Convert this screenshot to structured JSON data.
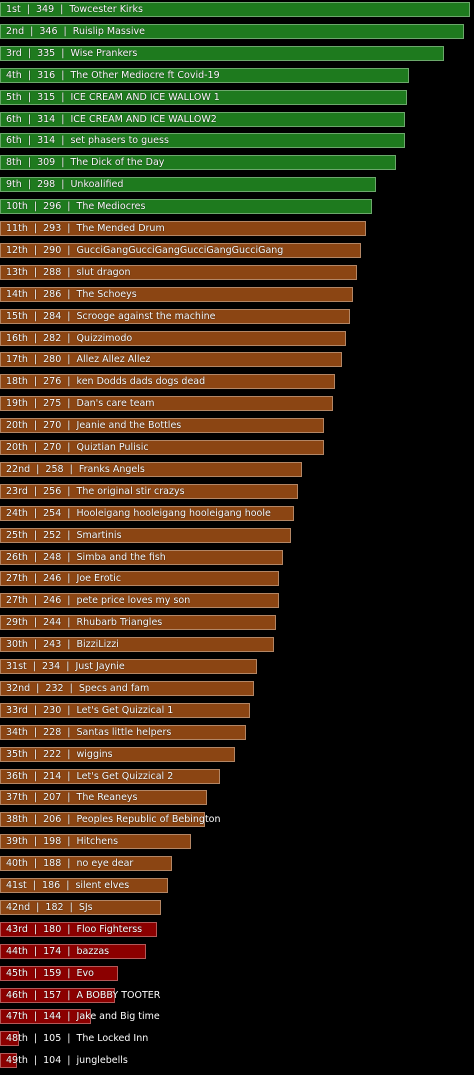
{
  "chart_data": {
    "type": "bar",
    "orientation": "horizontal",
    "separator": "  |  ",
    "max_value": 349,
    "colors": {
      "top": "#1e7a1e",
      "middle": "#8b4513",
      "bottom": "#8b0000",
      "background": "#000000",
      "text": "#ffffff"
    },
    "rows": [
      {
        "rank": "1st",
        "score": 349,
        "team": "Towcester Kirks",
        "tier": "top"
      },
      {
        "rank": "2nd",
        "score": 346,
        "team": "Ruislip Massive",
        "tier": "top"
      },
      {
        "rank": "3rd",
        "score": 335,
        "team": "Wise Prankers",
        "tier": "top"
      },
      {
        "rank": "4th",
        "score": 316,
        "team": "The Other Mediocre ft Covid-19",
        "tier": "top"
      },
      {
        "rank": "5th",
        "score": 315,
        "team": "ICE CREAM AND ICE WALLOW 1",
        "tier": "top"
      },
      {
        "rank": "6th",
        "score": 314,
        "team": "ICE CREAM AND ICE WALLOW2",
        "tier": "top"
      },
      {
        "rank": "6th",
        "score": 314,
        "team": "set phasers to guess",
        "tier": "top"
      },
      {
        "rank": "8th",
        "score": 309,
        "team": "The Dick of the Day",
        "tier": "top"
      },
      {
        "rank": "9th",
        "score": 298,
        "team": "Unkoalified",
        "tier": "top"
      },
      {
        "rank": "10th",
        "score": 296,
        "team": "The Mediocres",
        "tier": "top"
      },
      {
        "rank": "11th",
        "score": 293,
        "team": "The Mended Drum",
        "tier": "middle"
      },
      {
        "rank": "12th",
        "score": 290,
        "team": "GucciGangGucciGangGucciGangGucciGang",
        "tier": "middle"
      },
      {
        "rank": "13th",
        "score": 288,
        "team": "slut dragon",
        "tier": "middle"
      },
      {
        "rank": "14th",
        "score": 286,
        "team": "The Schoeys",
        "tier": "middle"
      },
      {
        "rank": "15th",
        "score": 284,
        "team": "Scrooge against the machine",
        "tier": "middle"
      },
      {
        "rank": "16th",
        "score": 282,
        "team": "Quizzimodo",
        "tier": "middle"
      },
      {
        "rank": "17th",
        "score": 280,
        "team": "Allez Allez Allez",
        "tier": "middle"
      },
      {
        "rank": "18th",
        "score": 276,
        "team": "ken Dodds dads dogs dead",
        "tier": "middle"
      },
      {
        "rank": "19th",
        "score": 275,
        "team": "Dan's care team",
        "tier": "middle"
      },
      {
        "rank": "20th",
        "score": 270,
        "team": "Jeanie and the Bottles",
        "tier": "middle"
      },
      {
        "rank": "20th",
        "score": 270,
        "team": "Quiztian Pulisic",
        "tier": "middle"
      },
      {
        "rank": "22nd",
        "score": 258,
        "team": "Franks Angels",
        "tier": "middle"
      },
      {
        "rank": "23rd",
        "score": 256,
        "team": "The original stir crazys",
        "tier": "middle"
      },
      {
        "rank": "24th",
        "score": 254,
        "team": "Hooleigang hooleigang hooleigang hoole",
        "tier": "middle"
      },
      {
        "rank": "25th",
        "score": 252,
        "team": "Smartinis",
        "tier": "middle"
      },
      {
        "rank": "26th",
        "score": 248,
        "team": "Simba and the fish",
        "tier": "middle"
      },
      {
        "rank": "27th",
        "score": 246,
        "team": "Joe Erotic",
        "tier": "middle"
      },
      {
        "rank": "27th",
        "score": 246,
        "team": "pete price loves my son",
        "tier": "middle"
      },
      {
        "rank": "29th",
        "score": 244,
        "team": "Rhubarb Triangles",
        "tier": "middle"
      },
      {
        "rank": "30th",
        "score": 243,
        "team": "BizziLizzi",
        "tier": "middle"
      },
      {
        "rank": "31st",
        "score": 234,
        "team": "Just Jaynie",
        "tier": "middle"
      },
      {
        "rank": "32nd",
        "score": 232,
        "team": "Specs and fam",
        "tier": "middle"
      },
      {
        "rank": "33rd",
        "score": 230,
        "team": "Let's Get Quizzical 1",
        "tier": "middle"
      },
      {
        "rank": "34th",
        "score": 228,
        "team": "Santas little helpers",
        "tier": "middle"
      },
      {
        "rank": "35th",
        "score": 222,
        "team": "wiggins",
        "tier": "middle"
      },
      {
        "rank": "36th",
        "score": 214,
        "team": "Let's Get Quizzical 2",
        "tier": "middle"
      },
      {
        "rank": "37th",
        "score": 207,
        "team": "The Reaneys",
        "tier": "middle"
      },
      {
        "rank": "38th",
        "score": 206,
        "team": "Peoples Republic of Bebington",
        "tier": "middle"
      },
      {
        "rank": "39th",
        "score": 198,
        "team": "Hitchens",
        "tier": "middle"
      },
      {
        "rank": "40th",
        "score": 188,
        "team": "no eye dear",
        "tier": "middle"
      },
      {
        "rank": "41st",
        "score": 186,
        "team": "silent elves",
        "tier": "middle"
      },
      {
        "rank": "42nd",
        "score": 182,
        "team": "SJs",
        "tier": "middle"
      },
      {
        "rank": "43rd",
        "score": 180,
        "team": "Floo Fighterss",
        "tier": "bottom"
      },
      {
        "rank": "44th",
        "score": 174,
        "team": "bazzas",
        "tier": "bottom"
      },
      {
        "rank": "45th",
        "score": 159,
        "team": "Evo",
        "tier": "bottom"
      },
      {
        "rank": "46th",
        "score": 157,
        "team": "A BOBBY TOOTER",
        "tier": "bottom"
      },
      {
        "rank": "47th",
        "score": 144,
        "team": "Jake and Big time",
        "tier": "bottom"
      },
      {
        "rank": "48th",
        "score": 105,
        "team": "The Locked Inn",
        "tier": "bottom"
      },
      {
        "rank": "49th",
        "score": 104,
        "team": "junglebells",
        "tier": "bottom"
      }
    ]
  }
}
